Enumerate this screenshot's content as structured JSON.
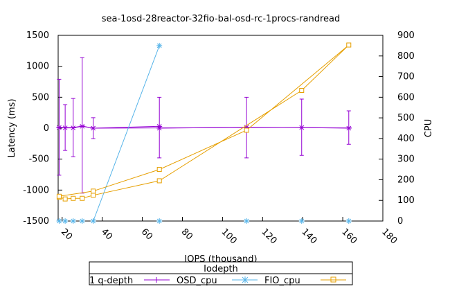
{
  "chart_data": {
    "type": "scatter",
    "title": "sea-1osd-28reactor-32fio-bal-osd-rc-1procs-randread",
    "xlabel": "IOPS (thousand)",
    "ylabel": "Latency (ms)",
    "y2label": "CPU",
    "xlim": [
      18,
      180
    ],
    "ylim": [
      -1500,
      1500
    ],
    "y2lim": [
      0,
      900
    ],
    "xticks": [
      20,
      40,
      60,
      80,
      100,
      120,
      140,
      160,
      180
    ],
    "yticks": [
      -1500,
      -1000,
      -500,
      0,
      500,
      1000,
      1500
    ],
    "y2ticks": [
      0,
      100,
      200,
      300,
      400,
      500,
      600,
      700,
      800,
      900
    ],
    "grid": false,
    "legend": {
      "title": "Iodepth",
      "placement": "bottom-center",
      "entries": [
        "1 q-depth",
        "OSD_cpu",
        "FIO_cpu",
        ""
      ]
    },
    "series": [
      {
        "name": "1 q-depth",
        "axis": "y",
        "color": "#9400d3",
        "marker": "plus-errorbar",
        "points": [
          {
            "x": 18.5,
            "y": 15,
            "ylow": -760,
            "yhigh": 790
          },
          {
            "x": 21.5,
            "y": 10,
            "ylow": -360,
            "yhigh": 380
          },
          {
            "x": 25.5,
            "y": 10,
            "ylow": -460,
            "yhigh": 480
          },
          {
            "x": 30.0,
            "y": 35,
            "ylow": -1050,
            "yhigh": 1140
          },
          {
            "x": 35.5,
            "y": 0,
            "ylow": -170,
            "yhigh": 170
          },
          {
            "x": 68.5,
            "y": 5,
            "ylow": -480,
            "yhigh": 500
          },
          {
            "x": 112,
            "y": 10,
            "ylow": -480,
            "yhigh": 500
          },
          {
            "x": 139.5,
            "y": 10,
            "ylow": -440,
            "yhigh": 470
          },
          {
            "x": 163,
            "y": 5,
            "ylow": -260,
            "yhigh": 280
          }
        ]
      },
      {
        "name": "OSD_cpu",
        "axis": "y",
        "color": "#9400d3",
        "marker": "star",
        "points": [
          {
            "x": 18.5,
            "y": 10
          },
          {
            "x": 21.5,
            "y": 5
          },
          {
            "x": 25.5,
            "y": 5
          },
          {
            "x": 30.0,
            "y": 30
          },
          {
            "x": 35.5,
            "y": 0
          },
          {
            "x": 68.5,
            "y": 30
          },
          {
            "x": 68.5,
            "y": 0
          },
          {
            "x": 112,
            "y": 15
          },
          {
            "x": 139.5,
            "y": 10
          },
          {
            "x": 163,
            "y": 0
          }
        ]
      },
      {
        "name": "FIO_cpu",
        "axis": "y2",
        "color": "#56b4e9",
        "marker": "asterisk",
        "line_points": [
          {
            "x": 35.5,
            "y": 0
          },
          {
            "x": 68.5,
            "y": 850
          }
        ],
        "points": [
          {
            "x": 18.5,
            "y": 0
          },
          {
            "x": 21.5,
            "y": 0
          },
          {
            "x": 25.5,
            "y": 0
          },
          {
            "x": 30.0,
            "y": 0
          },
          {
            "x": 35.5,
            "y": 0
          },
          {
            "x": 68.5,
            "y": 0
          },
          {
            "x": 112,
            "y": 0
          },
          {
            "x": 139.5,
            "y": 0
          },
          {
            "x": 163,
            "y": 0
          },
          {
            "x": 68.5,
            "y": 850
          }
        ]
      },
      {
        "name": "",
        "axis": "y2",
        "color": "#e69f00",
        "marker": "square",
        "points": [
          {
            "x": 18.5,
            "y": 115
          },
          {
            "x": 21.5,
            "y": 107
          },
          {
            "x": 25.5,
            "y": 110
          },
          {
            "x": 30.0,
            "y": 110
          },
          {
            "x": 35.5,
            "y": 125
          },
          {
            "x": 68.5,
            "y": 195
          },
          {
            "x": 139.5,
            "y": 633
          },
          {
            "x": 163,
            "y": 853
          },
          {
            "x": 112,
            "y": 440
          },
          {
            "x": 68.5,
            "y": 250
          },
          {
            "x": 35.5,
            "y": 145
          },
          {
            "x": 18.5,
            "y": 120
          }
        ]
      }
    ]
  }
}
